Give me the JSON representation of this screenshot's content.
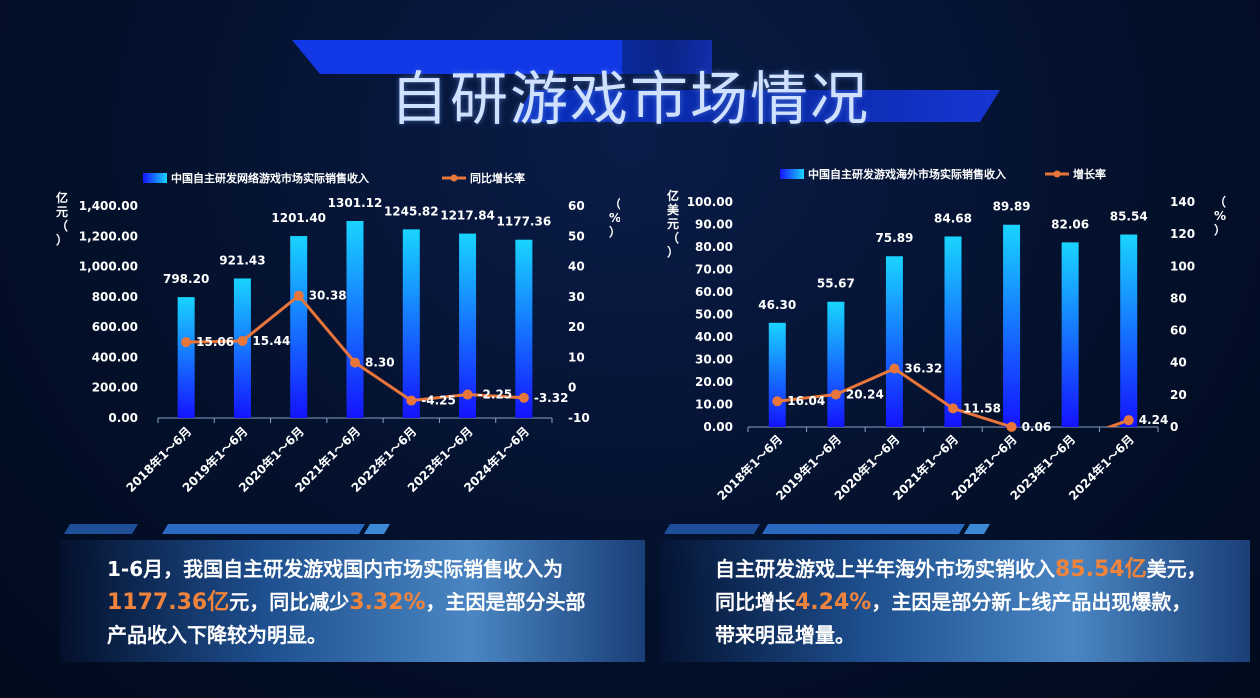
{
  "page_title": "自研游戏市场情况",
  "colors": {
    "background": "#03102a",
    "bar_top": "#19d4ff",
    "bar_bottom": "#1414ff",
    "line": "#e8763a",
    "highlight": "#f0843c"
  },
  "chart_data": [
    {
      "type": "bar",
      "legend_position": "top",
      "categories": [
        "2018年1～6月",
        "2019年1～6月",
        "2020年1～6月",
        "2021年1～6月",
        "2022年1～6月",
        "2023年1～6月",
        "2024年1～6月"
      ],
      "series": [
        {
          "name": "中国自主研发网络游戏市场实际销售收入",
          "type": "bar",
          "axis": "left",
          "values": [
            798.2,
            921.43,
            1201.4,
            1301.12,
            1245.82,
            1217.84,
            1177.36
          ],
          "labels": [
            "798.20",
            "921.43",
            "1201.40",
            "1301.12",
            "1245.82",
            "1217.84",
            "1177.36"
          ]
        },
        {
          "name": "同比增长率",
          "type": "line",
          "axis": "right",
          "values": [
            15.06,
            15.44,
            30.38,
            8.3,
            -4.25,
            -2.25,
            -3.32
          ],
          "labels": [
            "15.06",
            "15.44",
            "30.38",
            "8.30",
            "-4.25",
            "-2.25",
            "-3.32"
          ]
        }
      ],
      "y_left": {
        "label_chars": [
          "亿",
          "元",
          "（",
          "）"
        ],
        "ylim": [
          0,
          1400
        ],
        "ticks": [
          "0.00",
          "200.00",
          "400.00",
          "600.00",
          "800.00",
          "1,000.00",
          "1,200.00",
          "1,400.00"
        ]
      },
      "y_right": {
        "label_chars": [
          "（",
          "%",
          "）"
        ],
        "ylim": [
          -10,
          60
        ],
        "ticks": [
          "-10",
          "0",
          "10",
          "20",
          "30",
          "40",
          "50",
          "60"
        ]
      },
      "grid": false
    },
    {
      "type": "bar",
      "legend_position": "top",
      "categories": [
        "2018年1～6月",
        "2019年1～6月",
        "2020年1～6月",
        "2021年1～6月",
        "2022年1～6月",
        "2023年1～6月",
        "2024年1～6月"
      ],
      "series": [
        {
          "name": "中国自主研发游戏海外市场实际销售收入",
          "type": "bar",
          "axis": "left",
          "values": [
            46.3,
            55.67,
            75.89,
            84.68,
            89.89,
            82.06,
            85.54
          ],
          "labels": [
            "46.30",
            "55.67",
            "75.89",
            "84.68",
            "89.89",
            "82.06",
            "85.54"
          ]
        },
        {
          "name": "增长率",
          "type": "line",
          "axis": "right",
          "values": [
            16.04,
            20.24,
            36.32,
            11.58,
            0.06,
            -8.71,
            4.24
          ],
          "labels": [
            "16.04",
            "20.24",
            "36.32",
            "11.58",
            "0.06",
            "",
            "4.24"
          ]
        }
      ],
      "y_left": {
        "label_chars": [
          "亿",
          "美",
          "元",
          "（",
          "）"
        ],
        "ylim": [
          0,
          100
        ],
        "ticks": [
          "0.00",
          "10.00",
          "20.00",
          "30.00",
          "40.00",
          "50.00",
          "60.00",
          "70.00",
          "80.00",
          "90.00",
          "100.00"
        ]
      },
      "y_right": {
        "label_chars": [
          "（",
          "%",
          "）"
        ],
        "ylim": [
          0,
          140
        ],
        "ticks": [
          "0",
          "20",
          "40",
          "60",
          "80",
          "100",
          "120",
          "140"
        ]
      },
      "grid": false
    }
  ],
  "panels": [
    {
      "t1": "1-6月，我国自主研发游戏国内市场实际销售收入为",
      "h1": "1177.36亿",
      "t2": "元，同比减少",
      "h2": "3.32%",
      "t3": "，主因是部分头部",
      "t4": "产品收入下降较为明显。"
    },
    {
      "t1": "自主研发游戏上半年海外市场实销收入",
      "h1": "85.54亿",
      "t2": "美元，",
      "t3": "同比增长",
      "h2": "4.24%",
      "t4": "，主因是部分新上线产品出现爆款，",
      "t5": "带来明显增量。"
    }
  ]
}
